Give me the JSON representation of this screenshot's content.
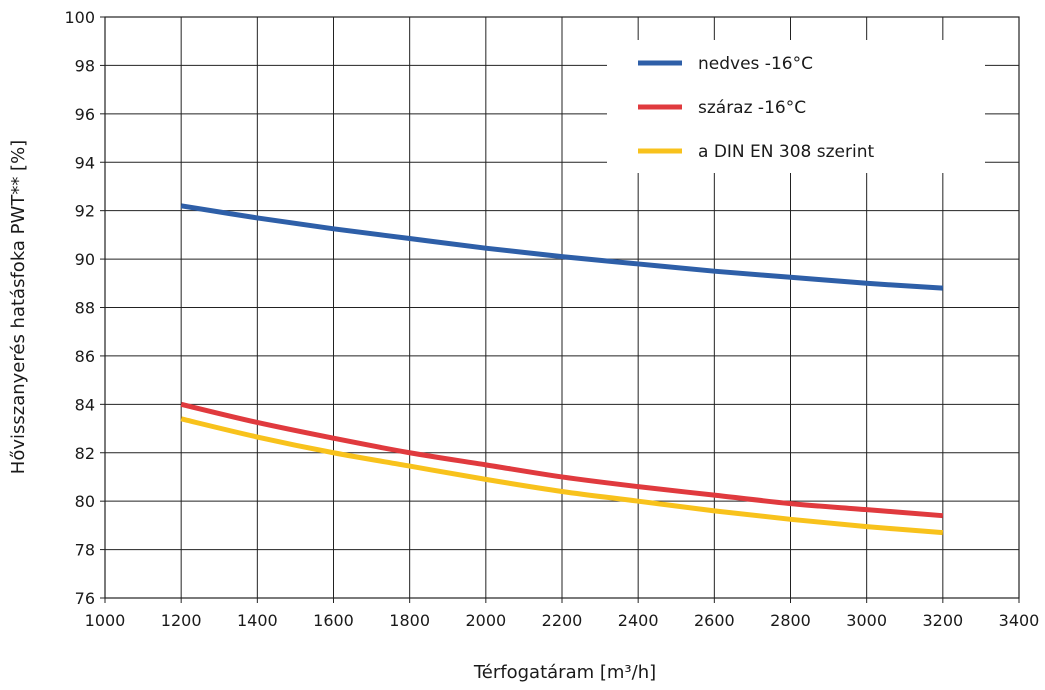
{
  "chart_data": {
    "type": "line",
    "title": "",
    "xlabel": "Térfogatáram [m³/h]",
    "ylabel": "Hővisszanyerés hatásfoka PWT** [%]",
    "xlim": [
      1000,
      3400
    ],
    "ylim": [
      76,
      100
    ],
    "xticks": [
      1000,
      1200,
      1400,
      1600,
      1800,
      2000,
      2200,
      2400,
      2600,
      2800,
      3000,
      3200,
      3400
    ],
    "yticks": [
      76,
      78,
      80,
      82,
      84,
      86,
      88,
      90,
      92,
      94,
      96,
      98,
      100
    ],
    "grid": true,
    "legend_position": "top-right",
    "x": [
      1200,
      1400,
      1600,
      1800,
      2000,
      2200,
      2400,
      2600,
      2800,
      3000,
      3200
    ],
    "series": [
      {
        "name": "nedves -16°C",
        "color": "#2e5fa8",
        "values": [
          92.2,
          91.7,
          91.25,
          90.85,
          90.45,
          90.1,
          89.8,
          89.5,
          89.25,
          89.0,
          88.8
        ]
      },
      {
        "name": "száraz -16°C",
        "color": "#e03a3e",
        "values": [
          84.0,
          83.25,
          82.6,
          82.0,
          81.5,
          81.0,
          80.6,
          80.25,
          79.9,
          79.65,
          79.4
        ]
      },
      {
        "name": "a DIN EN 308 szerint",
        "color": "#f8c21c",
        "values": [
          83.4,
          82.65,
          82.0,
          81.45,
          80.9,
          80.4,
          80.0,
          79.6,
          79.25,
          78.95,
          78.7
        ]
      }
    ]
  }
}
